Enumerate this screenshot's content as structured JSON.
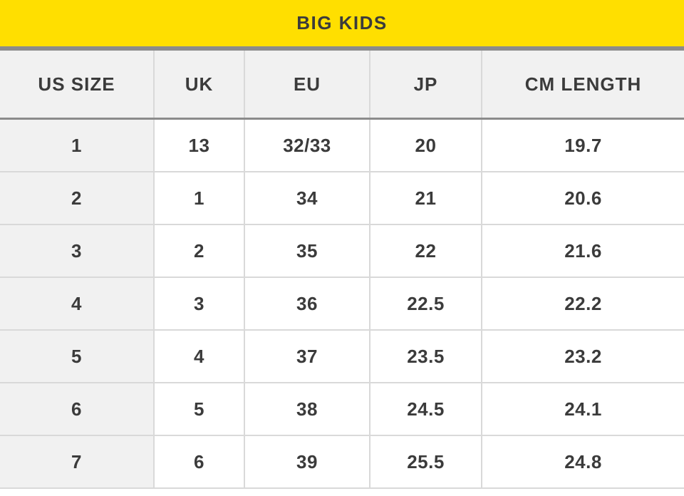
{
  "title": "BIG KIDS",
  "colors": {
    "title_bar_bg": "#ffdf00",
    "separator_gray": "#8b8b8b",
    "header_row_bg": "#f1f1f1",
    "first_column_bg": "#f1f1f1",
    "row_divider": "#d9d9d9",
    "text": "#3b3b3b"
  },
  "table": {
    "columns": [
      "US SIZE",
      "UK",
      "EU",
      "JP",
      "CM LENGTH"
    ],
    "rows": [
      [
        "1",
        "13",
        "32/33",
        "20",
        "19.7"
      ],
      [
        "2",
        "1",
        "34",
        "21",
        "20.6"
      ],
      [
        "3",
        "2",
        "35",
        "22",
        "21.6"
      ],
      [
        "4",
        "3",
        "36",
        "22.5",
        "22.2"
      ],
      [
        "5",
        "4",
        "37",
        "23.5",
        "23.2"
      ],
      [
        "6",
        "5",
        "38",
        "24.5",
        "24.1"
      ],
      [
        "7",
        "6",
        "39",
        "25.5",
        "24.8"
      ]
    ]
  }
}
